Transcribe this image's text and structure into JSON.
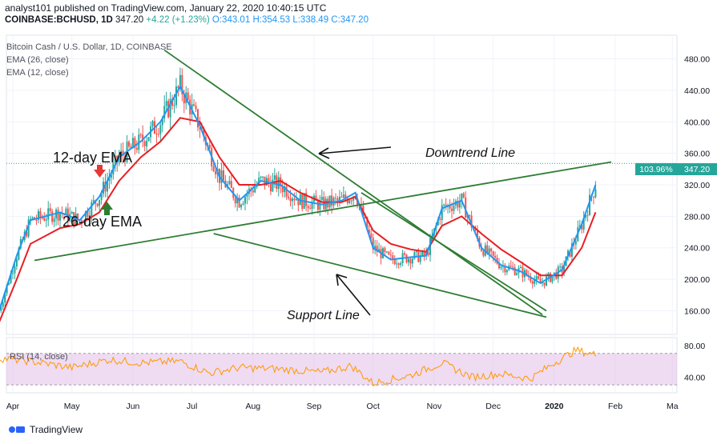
{
  "header": {
    "publisher": "analyst101 published on TradingView.com, January 22, 2020 10:40:15 UTC",
    "symbol": "COINBASE:BCHUSD, 1D",
    "last": "347.20",
    "change": "+4.22 (+1.23%)",
    "open": "O:343.01",
    "high": "H:354.53",
    "low": "L:338.49",
    "close": "C:347.20"
  },
  "legend": {
    "title": "Bitcoin Cash / U.S. Dollar, 1D, COINBASE",
    "ema26": "EMA (26, close)",
    "ema12": "EMA (12, close)",
    "rsi": "RSI (14, close)"
  },
  "annotations": {
    "ema12": "12-day EMA",
    "ema26": "26-day EMA",
    "downtrend": "Downtrend Line",
    "support": "Support Line"
  },
  "price_tags": {
    "pct": "103.96%",
    "price": "347.20"
  },
  "footer": {
    "brand": "TradingView"
  },
  "colors": {
    "ema12": "#2196f3",
    "ema26": "#e91e23",
    "trendline": "#2e7d32",
    "up_candle": "#26a69a",
    "down_candle": "#ef5350",
    "rsi_line": "#ff9800",
    "rsi_band": "#e1bee7"
  },
  "chart_data": {
    "type": "line",
    "title": "Bitcoin Cash / U.S. Dollar, 1D, COINBASE",
    "x_ticks": [
      "Apr",
      "May",
      "Jun",
      "Jul",
      "Aug",
      "Sep",
      "Oct",
      "Nov",
      "Dec",
      "2020",
      "Feb",
      "Ma"
    ],
    "y_ticks": [
      "160.00",
      "200.00",
      "240.00",
      "280.00",
      "320.00",
      "360.00",
      "400.00",
      "440.00",
      "480.00"
    ],
    "ylim": [
      130,
      510
    ],
    "rsi_ticks": [
      "40.00",
      "80.00"
    ],
    "rsi_ylim": [
      20,
      90
    ],
    "x_label_dates": [
      "2019-04-01",
      "2019-05-01",
      "2019-06-01",
      "2019-07-01",
      "2019-08-01",
      "2019-09-01",
      "2019-10-01",
      "2019-11-01",
      "2019-12-01",
      "2020-01-01",
      "2020-02-01",
      "2020-03-01"
    ],
    "series": [
      {
        "name": "EMA (12, close)",
        "x": [
          "2019-03-25",
          "2019-04-03",
          "2019-04-10",
          "2019-04-25",
          "2019-05-05",
          "2019-05-15",
          "2019-05-25",
          "2019-06-05",
          "2019-06-15",
          "2019-06-25",
          "2019-07-05",
          "2019-07-15",
          "2019-07-25",
          "2019-08-05",
          "2019-08-15",
          "2019-08-25",
          "2019-09-05",
          "2019-09-15",
          "2019-09-22",
          "2019-10-01",
          "2019-10-10",
          "2019-10-20",
          "2019-10-28",
          "2019-11-05",
          "2019-11-15",
          "2019-11-25",
          "2019-12-05",
          "2019-12-15",
          "2019-12-25",
          "2020-01-05",
          "2020-01-15",
          "2020-01-22"
        ],
        "values": [
          160,
          230,
          275,
          285,
          275,
          305,
          355,
          375,
          400,
          445,
          395,
          330,
          300,
          325,
          320,
          300,
          295,
          300,
          310,
          240,
          225,
          228,
          230,
          290,
          300,
          240,
          218,
          210,
          195,
          212,
          270,
          320
        ]
      },
      {
        "name": "EMA (26, close)",
        "x": [
          "2019-03-25",
          "2019-04-03",
          "2019-04-10",
          "2019-04-25",
          "2019-05-05",
          "2019-05-15",
          "2019-05-25",
          "2019-06-05",
          "2019-06-15",
          "2019-06-25",
          "2019-07-05",
          "2019-07-15",
          "2019-07-25",
          "2019-08-05",
          "2019-08-15",
          "2019-08-25",
          "2019-09-05",
          "2019-09-15",
          "2019-09-22",
          "2019-10-01",
          "2019-10-10",
          "2019-10-20",
          "2019-10-28",
          "2019-11-05",
          "2019-11-15",
          "2019-11-25",
          "2019-12-05",
          "2019-12-15",
          "2019-12-25",
          "2020-01-05",
          "2020-01-15",
          "2020-01-22"
        ],
        "values": [
          145,
          200,
          245,
          265,
          270,
          285,
          325,
          355,
          375,
          405,
          400,
          355,
          320,
          320,
          325,
          310,
          298,
          298,
          305,
          262,
          245,
          238,
          235,
          268,
          280,
          258,
          238,
          222,
          205,
          205,
          240,
          285
        ]
      },
      {
        "name": "RSI (14, close)",
        "x": [
          "2019-03-25",
          "2019-04-10",
          "2019-05-01",
          "2019-05-20",
          "2019-06-05",
          "2019-06-25",
          "2019-07-10",
          "2019-07-25",
          "2019-08-15",
          "2019-09-05",
          "2019-09-20",
          "2019-10-01",
          "2019-10-20",
          "2019-11-05",
          "2019-11-20",
          "2019-12-05",
          "2019-12-20",
          "2020-01-01",
          "2020-01-12",
          "2020-01-22"
        ],
        "values": [
          64,
          60,
          52,
          62,
          58,
          60,
          45,
          52,
          50,
          46,
          54,
          32,
          42,
          58,
          40,
          44,
          38,
          58,
          74,
          68
        ]
      }
    ],
    "trendlines": [
      {
        "name": "Downtrend Line",
        "from": [
          "2019-06-17",
          491
        ],
        "to": [
          "2019-12-26",
          155
        ]
      },
      {
        "name": "Downtrend Line",
        "from": [
          "2019-09-25",
          310
        ],
        "to": [
          "2019-12-28",
          160
        ]
      },
      {
        "name": "Support Line",
        "from": [
          "2019-04-12",
          224
        ],
        "to": [
          "2020-01-30",
          349
        ]
      },
      {
        "name": "Support Line",
        "from": [
          "2019-07-12",
          258
        ],
        "to": [
          "2019-12-28",
          152
        ]
      }
    ],
    "last_price": 347.2,
    "grid": true,
    "legend_position": "top-left"
  }
}
